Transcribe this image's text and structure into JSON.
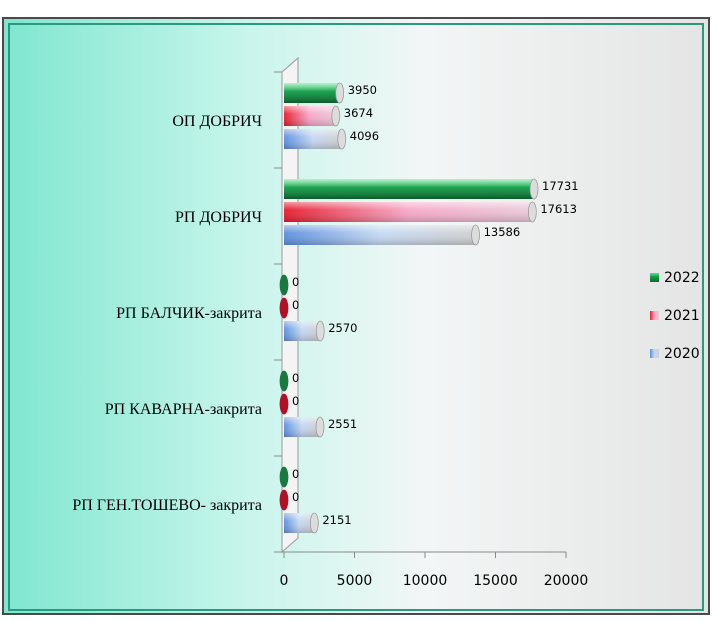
{
  "chart_data": {
    "type": "bar",
    "orientation": "horizontal",
    "categories": [
      "ОП ДОБРИЧ",
      "РП ДОБРИЧ",
      "РП БАЛЧИК-закрита",
      "РП КАВАРНА-закрита",
      "РП ГЕН.ТОШЕВО- закрита"
    ],
    "series": [
      {
        "name": "2022",
        "values": [
          3950,
          17731,
          0,
          0,
          0
        ],
        "color": "#1faa55"
      },
      {
        "name": "2021",
        "values": [
          3674,
          17613,
          0,
          0,
          0
        ],
        "color": "#e8283c"
      },
      {
        "name": "2020",
        "values": [
          4096,
          13586,
          2570,
          2551,
          2151
        ],
        "color": "#6f9fe0"
      }
    ],
    "value_labels": [
      [
        "3950",
        "3674",
        "4096"
      ],
      [
        "17731",
        "17613",
        "13586"
      ],
      [
        "0",
        "0",
        "2570"
      ],
      [
        "0",
        "0",
        "2551"
      ],
      [
        "0",
        "0",
        "2151"
      ]
    ],
    "xlim": [
      0,
      20000
    ],
    "xticks": [
      "0",
      "5000",
      "10000",
      "15000",
      "20000"
    ],
    "title": "",
    "xlabel": "",
    "ylabel": "",
    "legend_position": "right",
    "grid": false
  }
}
